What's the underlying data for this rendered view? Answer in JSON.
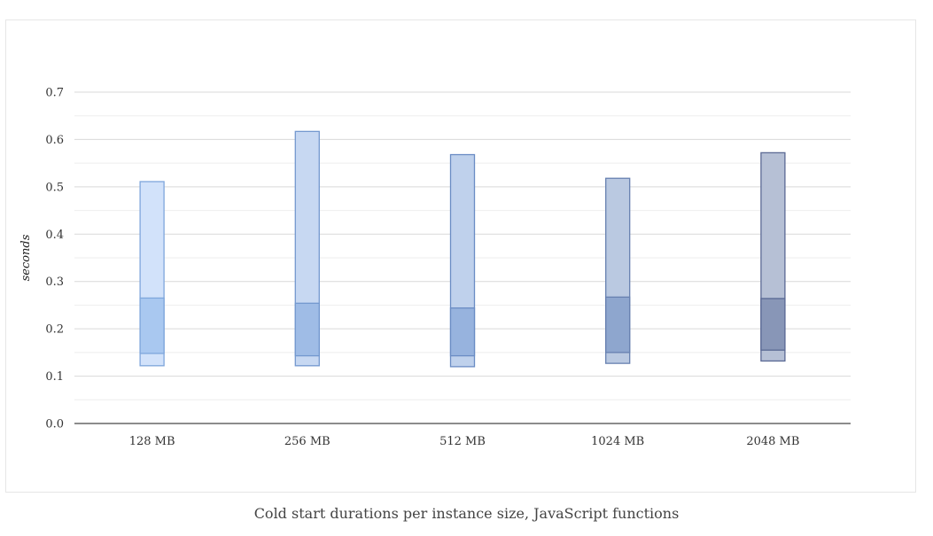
{
  "caption": "Cold start durations per instance size, JavaScript functions",
  "chart_data": {
    "type": "bar",
    "subtype": "floating-range",
    "title": "",
    "xlabel": "",
    "ylabel": "seconds",
    "ylim": [
      0,
      0.7
    ],
    "y_ticks": [
      "0.0",
      "0.1",
      "0.2",
      "0.3",
      "0.4",
      "0.5",
      "0.6",
      "0.7"
    ],
    "grid": true,
    "legend": "none",
    "categories": [
      "128 MB",
      "256 MB",
      "512 MB",
      "1024 MB",
      "2048 MB"
    ],
    "series": [
      {
        "min": [
          0.122,
          0.122,
          0.12,
          0.127,
          0.132
        ],
        "q1": [
          0.148,
          0.143,
          0.143,
          0.15,
          0.155
        ],
        "q3": [
          0.265,
          0.254,
          0.244,
          0.267,
          0.264
        ],
        "max": [
          0.511,
          0.617,
          0.568,
          0.518,
          0.572
        ]
      }
    ],
    "colors": {
      "outer_fill": [
        "#d2e2fa",
        "#c7d8f2",
        "#bfd1ec",
        "#bac9e1",
        "#b6c0d5"
      ],
      "inner_fill": [
        "#a9c8f0",
        "#9fbce6",
        "#97b3de",
        "#8ea6ce",
        "#8896b7"
      ],
      "stroke": [
        "#7fa6dc",
        "#7398cf",
        "#6a8cc4",
        "#6781b0",
        "#5a6994"
      ],
      "grid": "#d9d9d9",
      "axis": "#666666"
    }
  }
}
